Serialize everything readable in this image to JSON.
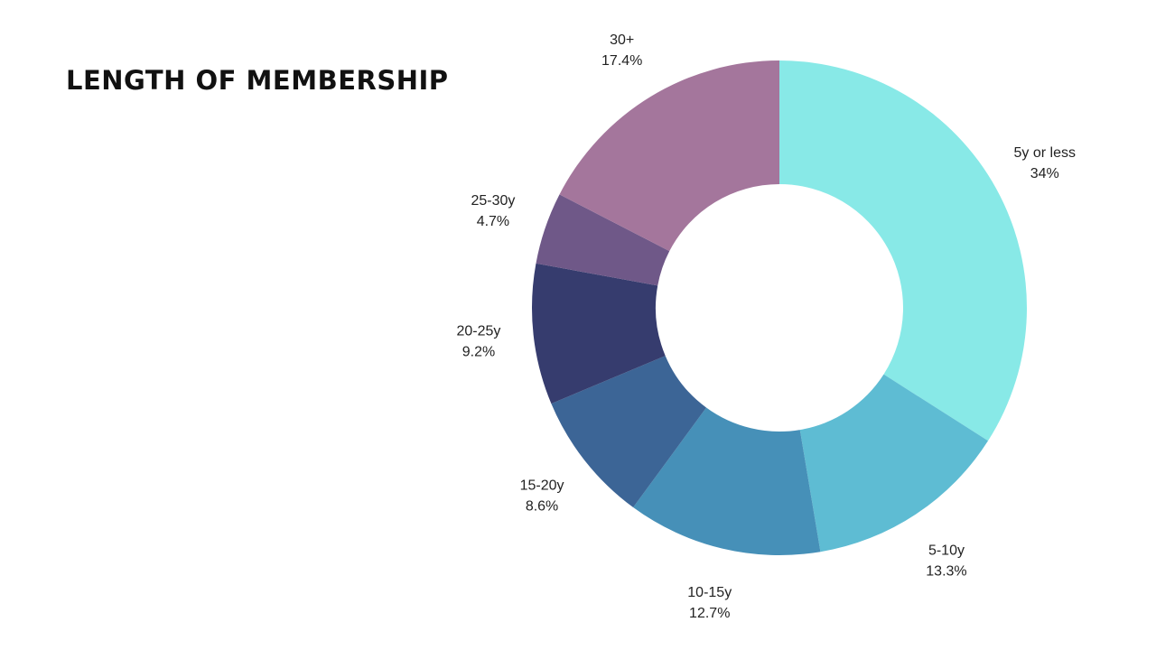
{
  "chart_data": {
    "type": "pie",
    "title": "LENGTH OF MEMBERSHIP",
    "donut": true,
    "start_angle": "top",
    "direction": "clockwise",
    "slices": [
      {
        "label": "5y or less",
        "value": 34.0,
        "value_label": "34%",
        "color": "#88E9E7"
      },
      {
        "label": "5-10y",
        "value": 13.3,
        "value_label": "13.3%",
        "color": "#5EBCD3"
      },
      {
        "label": "10-15y",
        "value": 12.7,
        "value_label": "12.7%",
        "color": "#4690B8"
      },
      {
        "label": "15-20y",
        "value": 8.6,
        "value_label": "8.6%",
        "color": "#3C6596"
      },
      {
        "label": "20-25y",
        "value": 9.2,
        "value_label": "9.2%",
        "color": "#363C6E"
      },
      {
        "label": "25-30y",
        "value": 4.7,
        "value_label": "4.7%",
        "color": "#6F5888"
      },
      {
        "label": "30+",
        "value": 17.4,
        "value_label": "17.4%",
        "color": "#A4769C"
      }
    ]
  }
}
